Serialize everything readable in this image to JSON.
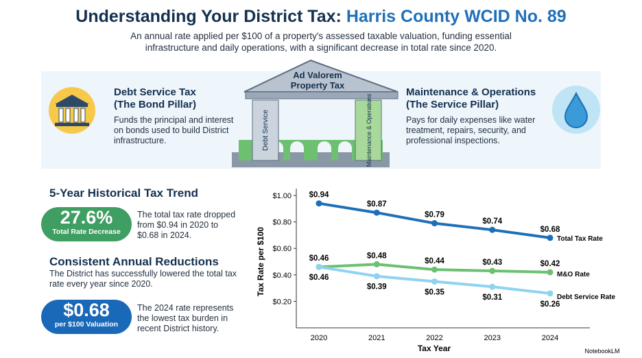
{
  "header": {
    "title_prefix": "Understanding Your District Tax:",
    "title_highlight": "Harris County WCID No. 89",
    "subtitle": "An annual rate applied per $100 of a property's assessed taxable valuation, funding essential infrastructure and daily operations, with a significant decrease in total rate since 2020."
  },
  "pillars": {
    "left": {
      "title": "Debt Service Tax",
      "subtitle": "(The Bond Pillar)",
      "text": "Funds the principal and interest on bonds used to build District infrastructure."
    },
    "roof": "Ad Valorem Property Tax",
    "left_column": "Debt Service",
    "right_column": "Maintenance & Operations",
    "right": {
      "title": "Maintenance & Operations",
      "subtitle": "(The Service Pillar)",
      "text": "Pays for daily expenses like water treatment, repairs, security, and professional inspections."
    }
  },
  "trend": {
    "heading": "5-Year Historical Tax Trend",
    "badge1": {
      "value": "27.6%",
      "label": "Total Rate Decrease"
    },
    "text1": "The total tax rate dropped from $0.94 in 2020 to $0.68 in 2024.",
    "heading2": "Consistent Annual Reductions",
    "text2": "The District has successfully lowered the total tax rate every year since 2020.",
    "badge2": {
      "value": "$0.68",
      "label": "per $100 Valuation"
    },
    "text3": "The 2024 rate represents the lowest tax burden in recent District history."
  },
  "chart_data": {
    "type": "line",
    "x_label": "Tax Year",
    "y_label": "Tax Rate per $100",
    "categories": [
      "2020",
      "2021",
      "2022",
      "2023",
      "2024"
    ],
    "ylim": [
      0,
      1.0
    ],
    "yticks": [
      {
        "value": 0.2,
        "label": "$0.20"
      },
      {
        "value": 0.4,
        "label": "$0.40"
      },
      {
        "value": 0.6,
        "label": "$0.60"
      },
      {
        "value": 0.8,
        "label": "$0.80"
      },
      {
        "value": 1.0,
        "label": "$1.00"
      }
    ],
    "series": [
      {
        "name": "Total Tax Rate",
        "color": "#1f6fb8",
        "values": [
          0.94,
          0.87,
          0.79,
          0.74,
          0.68
        ],
        "value_labels": [
          "$0.94",
          "$0.87",
          "$0.79",
          "$0.74",
          "$0.68"
        ]
      },
      {
        "name": "M&O Rate",
        "color": "#6cc070",
        "values": [
          0.46,
          0.48,
          0.44,
          0.43,
          0.42
        ],
        "value_labels": [
          "$0.46",
          "$0.48",
          "$0.44",
          "$0.43",
          "$0.42"
        ]
      },
      {
        "name": "Debt Service Rate",
        "color": "#8fd3f0",
        "values": [
          0.46,
          0.39,
          0.35,
          0.31,
          0.26
        ],
        "value_labels": [
          "$0.46",
          "$0.39",
          "$0.35",
          "$0.31",
          "$0.26"
        ]
      }
    ]
  },
  "footer": "NotebookLM"
}
